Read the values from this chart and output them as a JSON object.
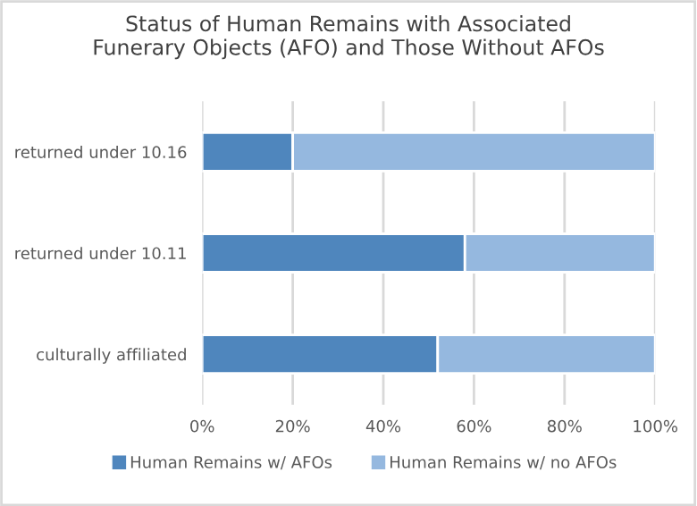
{
  "chart_data": {
    "type": "bar",
    "orientation": "horizontal",
    "stacked": true,
    "title": "Status of Human Remains with Associated\nFunerary Objects (AFO) and Those Without AFOs",
    "categories": [
      "returned under 10.16",
      "returned under 10.11",
      "culturally affiliated"
    ],
    "series": [
      {
        "name": "Human Remains w/ AFOs",
        "color": "#4f86bd",
        "values": [
          20,
          58,
          52
        ]
      },
      {
        "name": "Human Remains w/ no AFOs",
        "color": "#95b8df",
        "values": [
          80,
          42,
          48
        ]
      }
    ],
    "xlim": [
      0,
      100
    ],
    "xticks": [
      {
        "value": 0,
        "label": "0%"
      },
      {
        "value": 20,
        "label": "20%"
      },
      {
        "value": 40,
        "label": "40%"
      },
      {
        "value": 60,
        "label": "60%"
      },
      {
        "value": 80,
        "label": "80%"
      },
      {
        "value": 100,
        "label": "100%"
      }
    ],
    "grid": "x",
    "legend": "bottom"
  }
}
